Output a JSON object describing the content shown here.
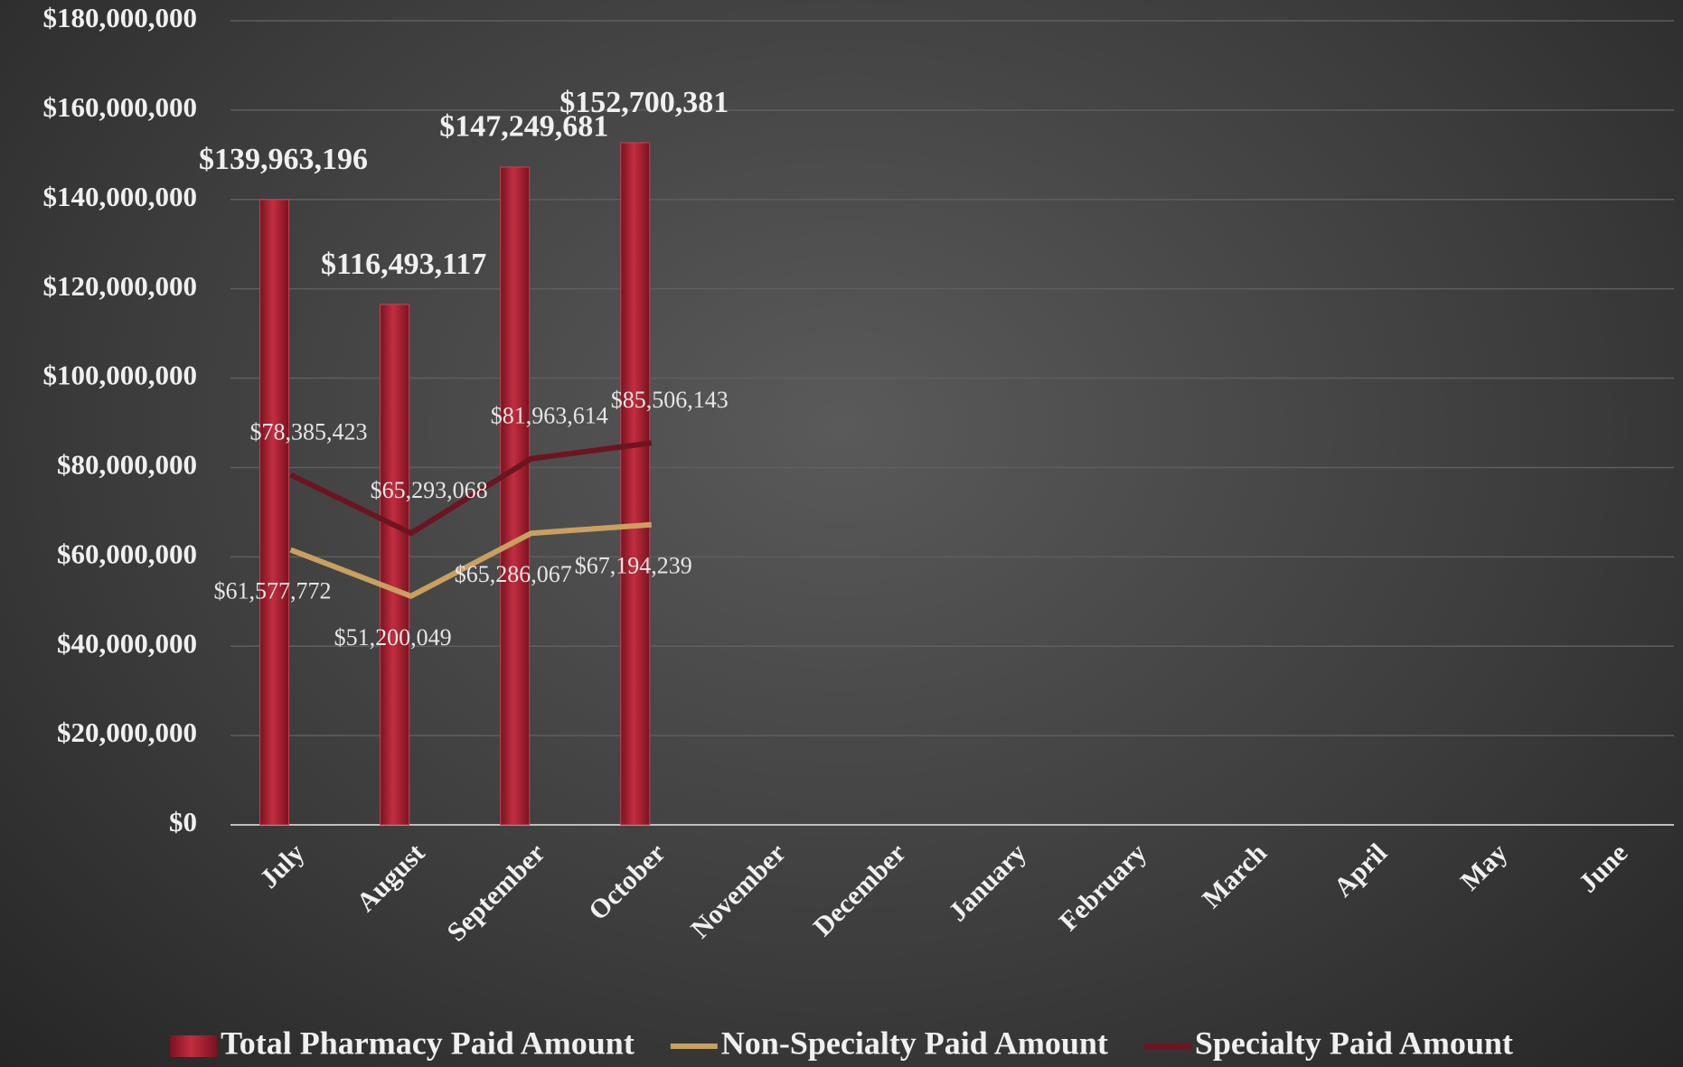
{
  "chart_data": {
    "type": "bar",
    "categories": [
      "July",
      "August",
      "September",
      "October",
      "November",
      "December",
      "January",
      "February",
      "March",
      "April",
      "May",
      "June"
    ],
    "series": [
      {
        "name": "Total Pharmacy Paid Amount",
        "type": "bar",
        "color": "#a31e2e",
        "values": [
          139963196,
          116493117,
          147249681,
          152700381,
          null,
          null,
          null,
          null,
          null,
          null,
          null,
          null
        ],
        "value_labels": [
          "$139,963,196",
          "$116,493,117",
          "$147,249,681",
          "$152,700,381",
          null,
          null,
          null,
          null,
          null,
          null,
          null,
          null
        ]
      },
      {
        "name": "Non-Specialty Paid Amount",
        "type": "line",
        "color": "#c9a060",
        "values": [
          61577772,
          51200049,
          65286067,
          67194239,
          null,
          null,
          null,
          null,
          null,
          null,
          null,
          null
        ],
        "value_labels": [
          "$61,577,772",
          "$51,200,049",
          "$65,286,067",
          "$67,194,239",
          null,
          null,
          null,
          null,
          null,
          null,
          null,
          null
        ]
      },
      {
        "name": "Specialty Paid Amount",
        "type": "line",
        "color": "#6e1420",
        "values": [
          78385423,
          65293068,
          81963614,
          85506143,
          null,
          null,
          null,
          null,
          null,
          null,
          null,
          null
        ],
        "value_labels": [
          "$78,385,423",
          "$65,293,068",
          "$81,963,614",
          "$85,506,143",
          null,
          null,
          null,
          null,
          null,
          null,
          null,
          null
        ]
      }
    ],
    "ylim": [
      0,
      180000000
    ],
    "yticks": [
      {
        "value": 0,
        "label": "$0"
      },
      {
        "value": 20000000,
        "label": "$20,000,000"
      },
      {
        "value": 40000000,
        "label": "$40,000,000"
      },
      {
        "value": 60000000,
        "label": "$60,000,000"
      },
      {
        "value": 80000000,
        "label": "$80,000,000"
      },
      {
        "value": 100000000,
        "label": "$100,000,000"
      },
      {
        "value": 120000000,
        "label": "$120,000,000"
      },
      {
        "value": 140000000,
        "label": "$140,000,000"
      },
      {
        "value": 160000000,
        "label": "$160,000,000"
      },
      {
        "value": 180000000,
        "label": "$180,000,000"
      }
    ],
    "grid": true,
    "legend": "bottom"
  }
}
